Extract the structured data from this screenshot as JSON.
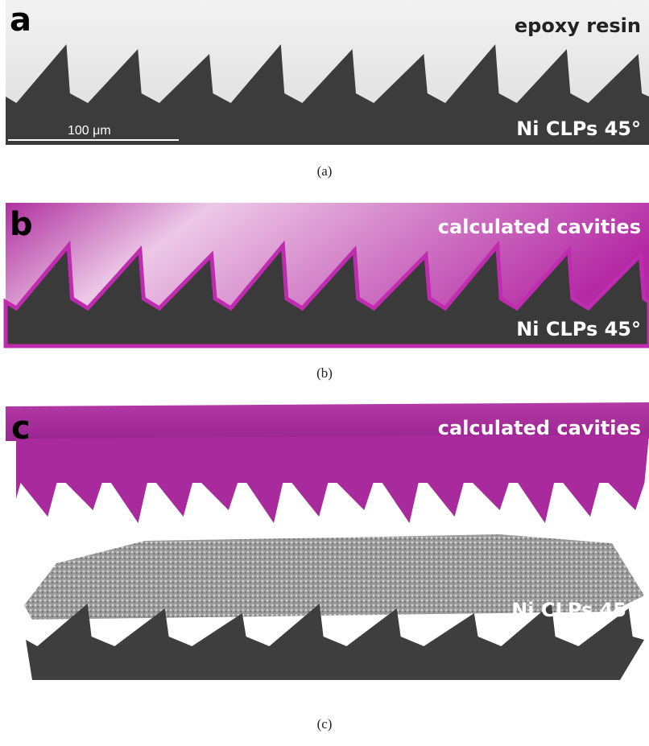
{
  "panels": [
    {
      "letter": "a",
      "top_label": "epoxy resin",
      "scale_bar": "100 μm",
      "bottom_label": "Ni CLPs 45°",
      "caption": "(a)"
    },
    {
      "letter": "b",
      "top_label": "calculated cavities",
      "bottom_label": "Ni CLPs 45°",
      "caption": "(b)"
    },
    {
      "letter": "c",
      "top_label": "calculated cavities",
      "bottom_label": "Ni CLPs 45°",
      "caption": "(c)"
    }
  ]
}
